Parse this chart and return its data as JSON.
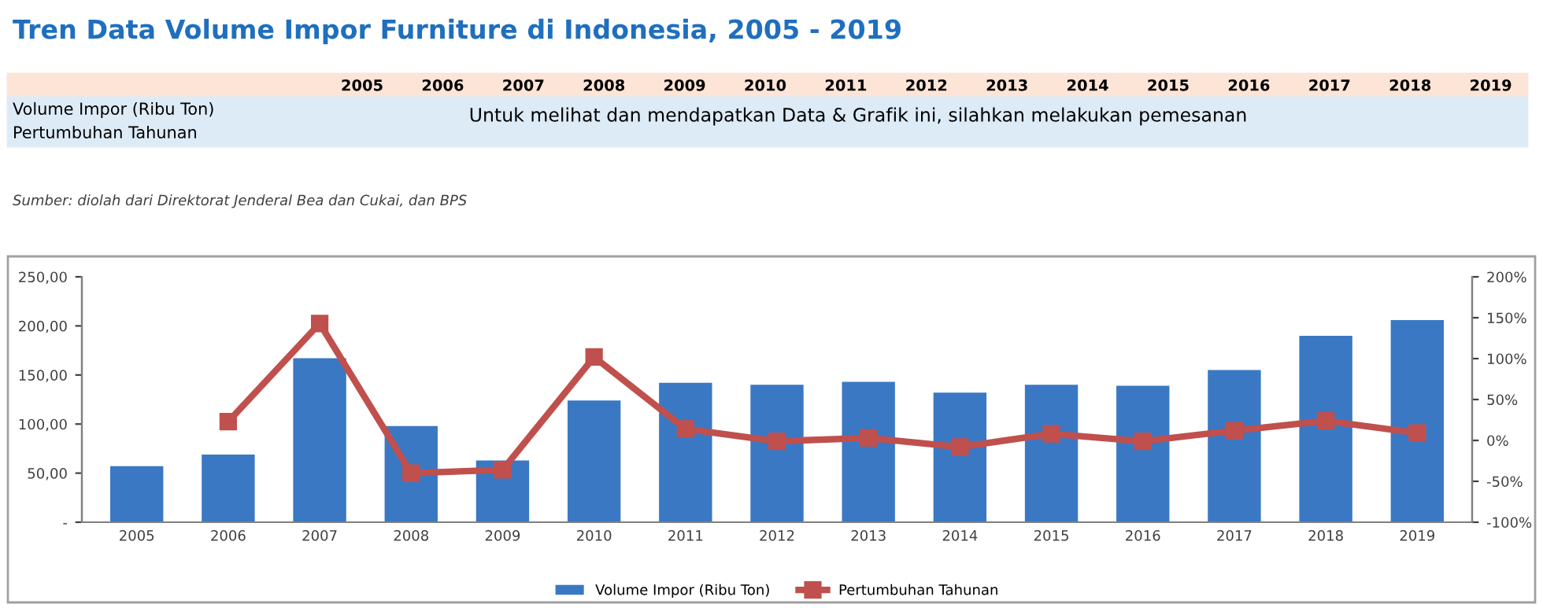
{
  "chart_data": {
    "type": "bar",
    "title": "Tren Data Volume Impor Furniture di Indonesia, 2005 - 2019",
    "categories": [
      "2005",
      "2006",
      "2007",
      "2008",
      "2009",
      "2010",
      "2011",
      "2012",
      "2013",
      "2014",
      "2015",
      "2016",
      "2017",
      "2018",
      "2019"
    ],
    "series": [
      {
        "name": "Volume Impor (Ribu Ton)",
        "color": "#3a78c4",
        "values": [
          57,
          69,
          167,
          98,
          63,
          124,
          142,
          140,
          143,
          132,
          140,
          139,
          155,
          190,
          206
        ]
      },
      {
        "name": "Pertumbuhan Tahunan",
        "type": "line",
        "axis": "y2",
        "color": "#c0504d",
        "values": [
          null,
          23,
          143,
          -40,
          -36,
          102,
          14,
          -1,
          3,
          -8,
          8,
          -1,
          12,
          24,
          9
        ]
      }
    ],
    "ylim": [
      0,
      250
    ],
    "yticks": [
      {
        "value": 0,
        "label": "-"
      },
      {
        "value": 50,
        "label": "50,00"
      },
      {
        "value": 100,
        "label": "100,00"
      },
      {
        "value": 150,
        "label": "150,00"
      },
      {
        "value": 200,
        "label": "200,00"
      },
      {
        "value": 250,
        "label": "250,00"
      }
    ],
    "y2lim": [
      -100,
      200
    ],
    "y2ticks": [
      {
        "value": -100,
        "label": "-100%"
      },
      {
        "value": -50,
        "label": "-50%"
      },
      {
        "value": 0,
        "label": "0%"
      },
      {
        "value": 50,
        "label": "50%"
      },
      {
        "value": 100,
        "label": "100%"
      },
      {
        "value": 150,
        "label": "150%"
      },
      {
        "value": 200,
        "label": "200%"
      }
    ],
    "marker": "square",
    "line_style": "solid",
    "grid": false,
    "legend": "bottom",
    "annotations": [
      "Untuk melihat dan mendapatkan Data & Grafik ini, silahkan melakukan pemesanan",
      "Sumber: diolah dari Direktorat Jenderal Bea dan Cukai, dan BPS"
    ]
  }
}
